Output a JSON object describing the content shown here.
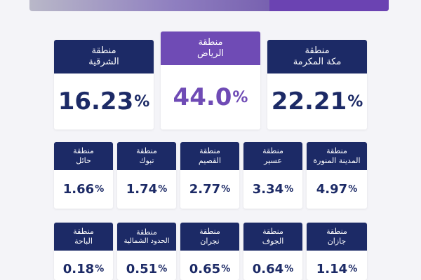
{
  "colors": {
    "navy": "#1c2a66",
    "purple": "#6f4bb5",
    "background": "#f4f4f8"
  },
  "top_regions": [
    {
      "line1": "منطقة",
      "line2": "الشرقية",
      "value": "16.23",
      "unit": "%"
    },
    {
      "line1": "منطقة",
      "line2": "الرياض",
      "value": "44.0",
      "unit": "%"
    },
    {
      "line1": "منطقة",
      "line2": "مكة المكرمة",
      "value": "22.21",
      "unit": "%"
    }
  ],
  "row2": [
    {
      "line1": "منطقة",
      "line2": "حائل",
      "value": "1.66",
      "unit": "%"
    },
    {
      "line1": "منطقة",
      "line2": "تبوك",
      "value": "1.74",
      "unit": "%"
    },
    {
      "line1": "منطقة",
      "line2": "القصيم",
      "value": "2.77",
      "unit": "%"
    },
    {
      "line1": "منطقة",
      "line2": "عسير",
      "value": "3.34",
      "unit": "%"
    },
    {
      "line1": "منطقة",
      "line2": "المدينة المنورة",
      "value": "4.97",
      "unit": "%"
    }
  ],
  "row3": [
    {
      "line1": "منطقة",
      "line2": "الباحة",
      "value": "0.18",
      "unit": "%"
    },
    {
      "line1": "منطقة",
      "line2": "الحدود الشمالية",
      "value": "0.51",
      "unit": "%"
    },
    {
      "line1": "منطقة",
      "line2": "نجران",
      "value": "0.65",
      "unit": "%"
    },
    {
      "line1": "منطقة",
      "line2": "الجوف",
      "value": "0.64",
      "unit": "%"
    },
    {
      "line1": "منطقة",
      "line2": "جازان",
      "value": "1.14",
      "unit": "%"
    }
  ]
}
